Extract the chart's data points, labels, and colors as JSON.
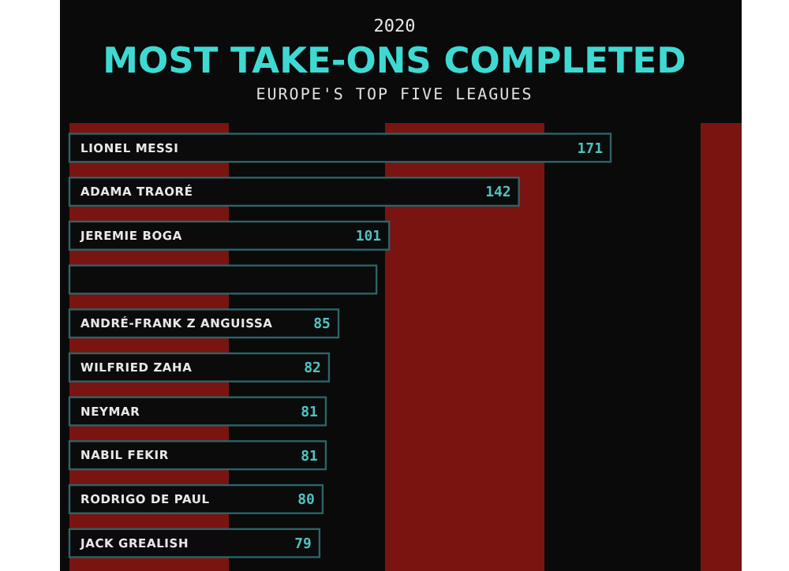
{
  "chart_data": {
    "type": "bar",
    "orientation": "horizontal",
    "title": "MOST TAKE-ONS COMPLETED",
    "subtitle": "EUROPE'S TOP FIVE LEAGUES",
    "annotations": [
      "2020"
    ],
    "categories": [
      "LIONEL MESSI",
      "ADAMA TRAORÉ",
      "JEREMIE BOGA",
      null,
      "ANDRÉ-FRANK Z ANGUISSA",
      "WILFRIED ZAHA",
      "NEYMAR",
      "NABIL FEKIR",
      "RODRIGO DE PAUL",
      "JACK GREALISH"
    ],
    "values": [
      171,
      142,
      101,
      97,
      85,
      82,
      81,
      81,
      80,
      79
    ],
    "value_labels": [
      "171",
      "142",
      "101",
      null,
      "85",
      "82",
      "81",
      "81",
      "80",
      "79"
    ],
    "color": "#0b0b0b"
  }
}
